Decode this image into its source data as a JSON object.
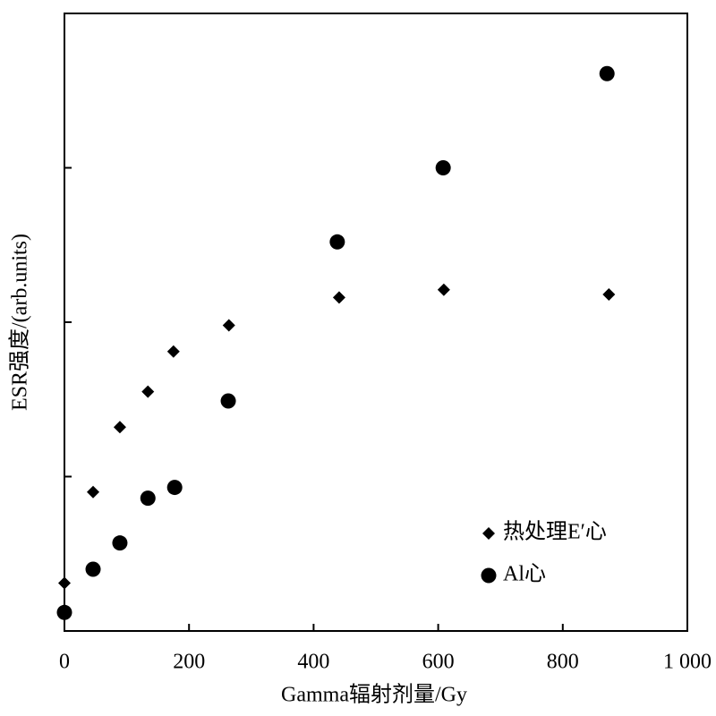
{
  "chart_data": {
    "type": "scatter",
    "x_label": "Gamma辐射剂量/Gy",
    "y_label": "ESR强度/(arb.units)",
    "xlim": [
      0,
      1000
    ],
    "xticks": [
      0,
      200,
      400,
      600,
      800,
      {
        "value": 1000,
        "label": "1 000"
      }
    ],
    "ylim": [
      0,
      4
    ],
    "yticks": [
      1,
      2,
      3
    ],
    "show_ytick_labels": false,
    "legend": "lower right",
    "series": [
      {
        "name": "热处理E′心",
        "marker": "diamond",
        "color": "#000000",
        "x": [
          0,
          46,
          89,
          134,
          175,
          264,
          441,
          609,
          874
        ],
        "values": [
          0.31,
          0.9,
          1.32,
          1.55,
          1.81,
          1.98,
          2.16,
          2.21,
          2.18
        ]
      },
      {
        "name": "Al心",
        "marker": "circle",
        "color": "#000000",
        "x": [
          0,
          46,
          89,
          134,
          177,
          263,
          438,
          608,
          871
        ],
        "values": [
          0.12,
          0.4,
          0.57,
          0.86,
          0.93,
          1.49,
          2.52,
          3.0,
          3.61
        ]
      }
    ]
  }
}
